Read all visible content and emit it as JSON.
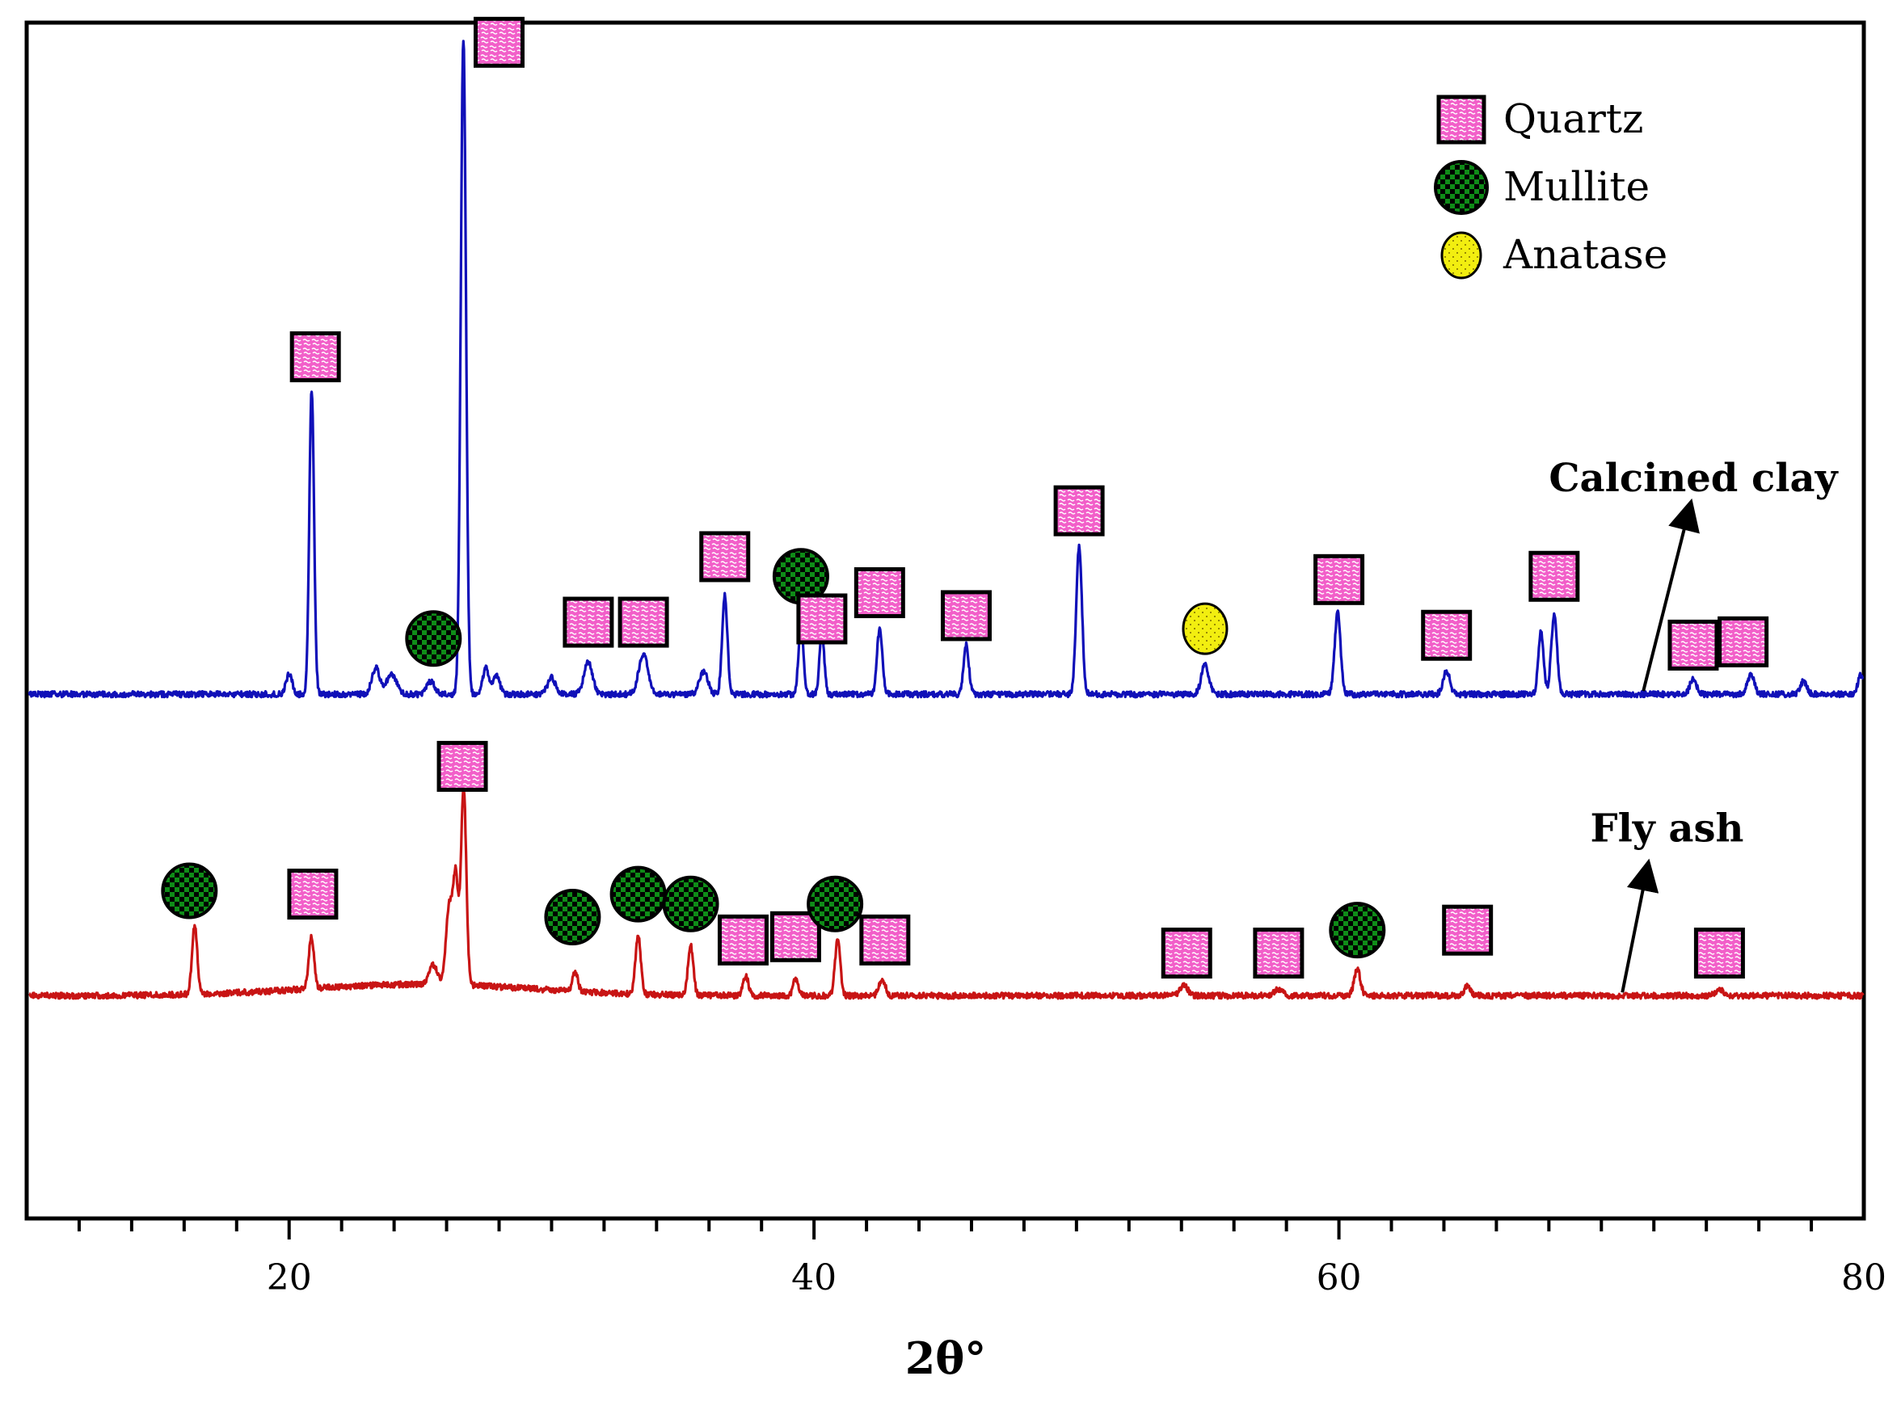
{
  "chart_data": {
    "type": "line",
    "title": "",
    "xlabel": "2θ°",
    "ylabel": "",
    "xlim": [
      10,
      80
    ],
    "x_ticks": [
      20,
      40,
      60,
      80
    ],
    "x_tick_labels": [
      "20",
      "40",
      "60",
      "80"
    ],
    "grid": false,
    "legend": {
      "position": "top-right",
      "entries": [
        {
          "marker": "quartz",
          "label": "Quartz"
        },
        {
          "marker": "mullite",
          "label": "Mullite"
        },
        {
          "marker": "anatase",
          "label": "Anatase"
        }
      ]
    },
    "series": [
      {
        "name": "Calcined clay",
        "label": "Calcined clay",
        "color": "#1010b8",
        "baseline": 0.0,
        "label_at": [
          73.5,
          0.62
        ],
        "arrow": {
          "from": [
            71.6,
            0.01
          ],
          "to": [
            73.3,
            0.55
          ]
        },
        "peaks": [
          {
            "x": 20.0,
            "h": 0.06,
            "w": 0.12
          },
          {
            "x": 20.86,
            "h": 0.93,
            "w": 0.09
          },
          {
            "x": 23.3,
            "h": 0.08,
            "w": 0.15
          },
          {
            "x": 23.9,
            "h": 0.06,
            "w": 0.2
          },
          {
            "x": 25.4,
            "h": 0.04,
            "w": 0.15
          },
          {
            "x": 26.64,
            "h": 2.0,
            "w": 0.1
          },
          {
            "x": 27.5,
            "h": 0.08,
            "w": 0.12
          },
          {
            "x": 27.9,
            "h": 0.06,
            "w": 0.12
          },
          {
            "x": 30.0,
            "h": 0.05,
            "w": 0.15
          },
          {
            "x": 31.4,
            "h": 0.1,
            "w": 0.16
          },
          {
            "x": 33.5,
            "h": 0.12,
            "w": 0.18
          },
          {
            "x": 35.8,
            "h": 0.07,
            "w": 0.16
          },
          {
            "x": 36.6,
            "h": 0.3,
            "w": 0.1
          },
          {
            "x": 39.5,
            "h": 0.22,
            "w": 0.09
          },
          {
            "x": 40.3,
            "h": 0.19,
            "w": 0.09
          },
          {
            "x": 42.5,
            "h": 0.2,
            "w": 0.1
          },
          {
            "x": 45.8,
            "h": 0.15,
            "w": 0.1
          },
          {
            "x": 50.1,
            "h": 0.45,
            "w": 0.11
          },
          {
            "x": 54.9,
            "h": 0.09,
            "w": 0.14
          },
          {
            "x": 59.95,
            "h": 0.25,
            "w": 0.11
          },
          {
            "x": 64.1,
            "h": 0.07,
            "w": 0.13
          },
          {
            "x": 67.7,
            "h": 0.19,
            "w": 0.1
          },
          {
            "x": 68.2,
            "h": 0.24,
            "w": 0.11
          },
          {
            "x": 73.5,
            "h": 0.05,
            "w": 0.12
          },
          {
            "x": 75.7,
            "h": 0.06,
            "w": 0.13
          },
          {
            "x": 77.7,
            "h": 0.04,
            "w": 0.12
          },
          {
            "x": 79.9,
            "h": 0.06,
            "w": 0.12
          }
        ]
      },
      {
        "name": "Fly ash",
        "label": "Fly ash",
        "color": "#c81414",
        "baseline": -0.92,
        "label_at": [
          72.5,
          -0.45
        ],
        "arrow": {
          "from": [
            70.8,
            -0.91
          ],
          "to": [
            71.7,
            -0.55
          ]
        },
        "peaks": [
          {
            "x": 16.4,
            "h": 0.21,
            "w": 0.1
          },
          {
            "x": 20.85,
            "h": 0.16,
            "w": 0.1
          },
          {
            "x": 25.5,
            "h": 0.06,
            "w": 0.15
          },
          {
            "x": 26.1,
            "h": 0.24,
            "w": 0.12
          },
          {
            "x": 26.35,
            "h": 0.32,
            "w": 0.1
          },
          {
            "x": 26.65,
            "h": 0.6,
            "w": 0.1
          },
          {
            "x": 30.9,
            "h": 0.06,
            "w": 0.1
          },
          {
            "x": 33.3,
            "h": 0.18,
            "w": 0.1
          },
          {
            "x": 35.3,
            "h": 0.15,
            "w": 0.1
          },
          {
            "x": 37.4,
            "h": 0.06,
            "w": 0.1
          },
          {
            "x": 39.3,
            "h": 0.05,
            "w": 0.1
          },
          {
            "x": 40.9,
            "h": 0.17,
            "w": 0.1
          },
          {
            "x": 42.6,
            "h": 0.05,
            "w": 0.12
          },
          {
            "x": 54.1,
            "h": 0.03,
            "w": 0.15
          },
          {
            "x": 57.7,
            "h": 0.02,
            "w": 0.15
          },
          {
            "x": 60.7,
            "h": 0.08,
            "w": 0.12
          },
          {
            "x": 64.9,
            "h": 0.03,
            "w": 0.12
          },
          {
            "x": 74.5,
            "h": 0.02,
            "w": 0.15
          }
        ]
      }
    ],
    "annotations": [
      {
        "marker": "quartz",
        "x": 28.0,
        "y": 1.99
      },
      {
        "marker": "quartz",
        "x": 21.0,
        "y": 1.03
      },
      {
        "marker": "mullite",
        "x": 25.5,
        "y": 0.17
      },
      {
        "marker": "quartz",
        "x": 31.4,
        "y": 0.22
      },
      {
        "marker": "quartz",
        "x": 33.5,
        "y": 0.22
      },
      {
        "marker": "quartz",
        "x": 36.6,
        "y": 0.42
      },
      {
        "marker": "mullite",
        "x": 39.5,
        "y": 0.36
      },
      {
        "marker": "quartz",
        "x": 40.3,
        "y": 0.23
      },
      {
        "marker": "quartz",
        "x": 42.5,
        "y": 0.31
      },
      {
        "marker": "quartz",
        "x": 45.8,
        "y": 0.24
      },
      {
        "marker": "quartz",
        "x": 50.1,
        "y": 0.56
      },
      {
        "marker": "anatase",
        "x": 54.9,
        "y": 0.2
      },
      {
        "marker": "quartz",
        "x": 60.0,
        "y": 0.35
      },
      {
        "marker": "quartz",
        "x": 64.1,
        "y": 0.18
      },
      {
        "marker": "quartz",
        "x": 68.2,
        "y": 0.36
      },
      {
        "marker": "quartz",
        "x": 73.5,
        "y": 0.15
      },
      {
        "marker": "quartz",
        "x": 75.4,
        "y": 0.16
      },
      {
        "marker": "quartz",
        "x": 26.6,
        "y": -0.22
      },
      {
        "marker": "mullite",
        "x": 16.2,
        "y": -0.6
      },
      {
        "marker": "quartz",
        "x": 20.9,
        "y": -0.61
      },
      {
        "marker": "mullite",
        "x": 30.8,
        "y": -0.68
      },
      {
        "marker": "mullite",
        "x": 33.3,
        "y": -0.61
      },
      {
        "marker": "mullite",
        "x": 35.3,
        "y": -0.64
      },
      {
        "marker": "quartz",
        "x": 37.3,
        "y": -0.75
      },
      {
        "marker": "quartz",
        "x": 39.3,
        "y": -0.74
      },
      {
        "marker": "mullite",
        "x": 40.8,
        "y": -0.64
      },
      {
        "marker": "quartz",
        "x": 42.7,
        "y": -0.75
      },
      {
        "marker": "quartz",
        "x": 54.2,
        "y": -0.79
      },
      {
        "marker": "quartz",
        "x": 57.7,
        "y": -0.79
      },
      {
        "marker": "mullite",
        "x": 60.7,
        "y": -0.72
      },
      {
        "marker": "quartz",
        "x": 64.9,
        "y": -0.72
      },
      {
        "marker": "quartz",
        "x": 74.5,
        "y": -0.79
      }
    ]
  },
  "colors": {
    "quartz_fill": "#f25fc9",
    "quartz_pattern": "#ffffff",
    "mullite_fill": "#0f8c18",
    "mullite_pattern": "#000000",
    "anatase_fill": "#f2ee10",
    "frame": "#000000"
  }
}
